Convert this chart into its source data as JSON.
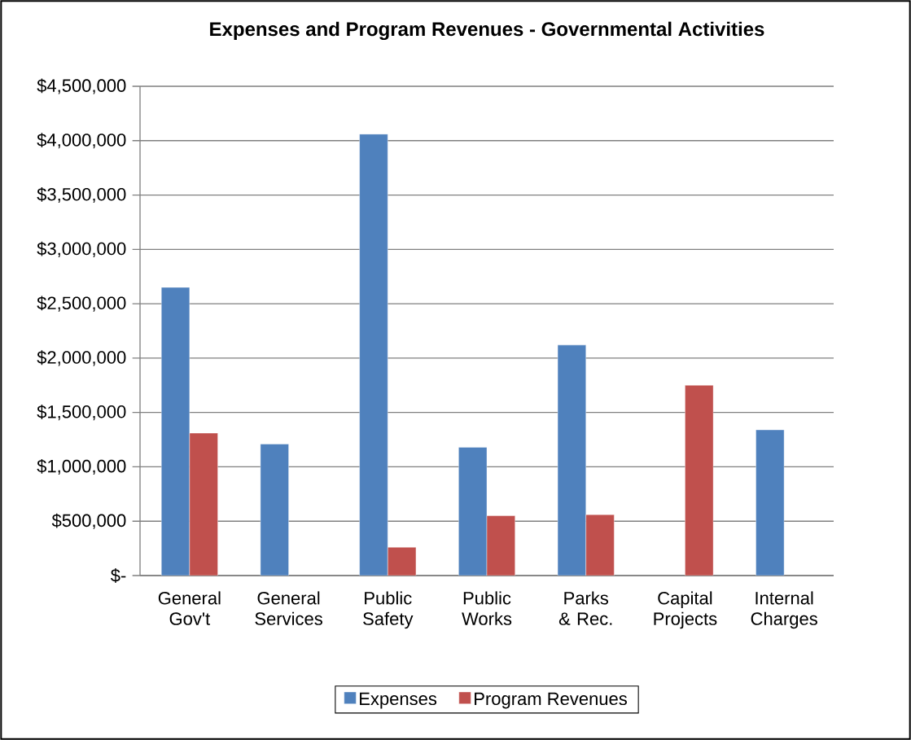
{
  "chart_data": {
    "type": "bar",
    "title": "Expenses and Program Revenues - Governmental Activities",
    "categories": [
      "General Gov't",
      "General Services",
      "Public Safety",
      "Public Works",
      "Parks & Rec.",
      "Capital Projects",
      "Internal Charges"
    ],
    "series": [
      {
        "name": "Expenses",
        "color": "#4f81bd",
        "values": [
          2650000,
          1210000,
          4060000,
          1180000,
          2120000,
          null,
          1340000
        ]
      },
      {
        "name": "Program Revenues",
        "color": "#c0504d",
        "values": [
          1310000,
          null,
          260000,
          550000,
          560000,
          1750000,
          null
        ]
      }
    ],
    "ylim": [
      0,
      4500000
    ],
    "yticks": [
      {
        "value": 0,
        "label": "$-"
      },
      {
        "value": 500000,
        "label": "$500,000"
      },
      {
        "value": 1000000,
        "label": "$1,000,000"
      },
      {
        "value": 1500000,
        "label": "$1,500,000"
      },
      {
        "value": 2000000,
        "label": "$2,000,000"
      },
      {
        "value": 2500000,
        "label": "$2,500,000"
      },
      {
        "value": 3000000,
        "label": "$3,000,000"
      },
      {
        "value": 3500000,
        "label": "$3,500,000"
      },
      {
        "value": 4000000,
        "label": "$4,000,000"
      },
      {
        "value": 4500000,
        "label": "$4,500,000"
      }
    ],
    "grid": "y",
    "legend": "bottom"
  }
}
